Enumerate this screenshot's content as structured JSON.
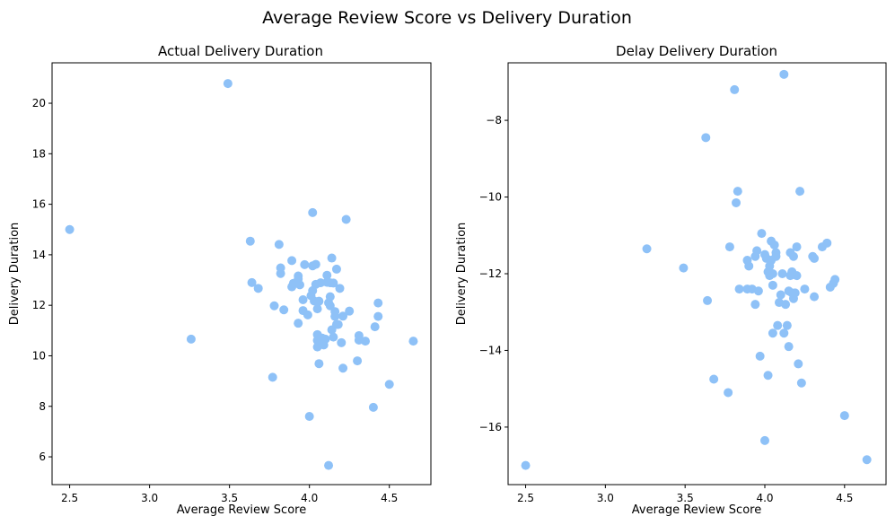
{
  "figure_title": "Average Review Score vs Delivery Duration",
  "colors": {
    "points": "#8ec1f7",
    "axes": "#000000",
    "background": "#ffffff"
  },
  "chart_data": [
    {
      "type": "scatter",
      "title": "Actual Delivery Duration",
      "xlabel": "Average Review Score",
      "ylabel": "Delivery Duration",
      "xlim": [
        2.39,
        4.76
      ],
      "ylim": [
        4.9,
        21.6
      ],
      "xticks": [
        2.5,
        3.0,
        3.5,
        4.0,
        4.5
      ],
      "xtick_labels": [
        "2.5",
        "3.0",
        "3.5",
        "4.0",
        "4.5"
      ],
      "yticks": [
        6,
        8,
        10,
        12,
        14,
        16,
        18,
        20
      ],
      "ytick_labels": [
        "6",
        "8",
        "10",
        "12",
        "14",
        "16",
        "18",
        "20"
      ],
      "grid": false,
      "points": [
        [
          2.5,
          15.0
        ],
        [
          3.26,
          10.66
        ],
        [
          3.49,
          20.78
        ],
        [
          3.63,
          14.54
        ],
        [
          3.64,
          12.9
        ],
        [
          3.68,
          12.67
        ],
        [
          3.77,
          9.15
        ],
        [
          3.78,
          11.98
        ],
        [
          3.81,
          14.41
        ],
        [
          3.82,
          13.48
        ],
        [
          3.82,
          13.26
        ],
        [
          3.84,
          11.82
        ],
        [
          3.89,
          12.73
        ],
        [
          3.89,
          13.77
        ],
        [
          3.9,
          12.87
        ],
        [
          3.93,
          13.16
        ],
        [
          3.93,
          13.04
        ],
        [
          3.94,
          12.81
        ],
        [
          3.93,
          11.29
        ],
        [
          3.96,
          11.79
        ],
        [
          3.96,
          12.22
        ],
        [
          3.97,
          13.61
        ],
        [
          3.99,
          11.62
        ],
        [
          4.0,
          7.6
        ],
        [
          4.01,
          12.38
        ],
        [
          4.02,
          12.58
        ],
        [
          4.02,
          13.56
        ],
        [
          4.02,
          15.67
        ],
        [
          4.03,
          12.17
        ],
        [
          4.04,
          13.62
        ],
        [
          4.04,
          12.83
        ],
        [
          4.05,
          11.86
        ],
        [
          4.05,
          10.84
        ],
        [
          4.05,
          10.61
        ],
        [
          4.05,
          10.35
        ],
        [
          4.06,
          12.16
        ],
        [
          4.06,
          9.69
        ],
        [
          4.07,
          12.89
        ],
        [
          4.08,
          10.7
        ],
        [
          4.09,
          10.43
        ],
        [
          4.1,
          10.66
        ],
        [
          4.11,
          12.91
        ],
        [
          4.11,
          13.19
        ],
        [
          4.12,
          5.66
        ],
        [
          4.12,
          12.1
        ],
        [
          4.13,
          12.89
        ],
        [
          4.13,
          11.98
        ],
        [
          4.13,
          12.34
        ],
        [
          4.14,
          13.87
        ],
        [
          4.14,
          11.03
        ],
        [
          4.15,
          12.88
        ],
        [
          4.15,
          10.74
        ],
        [
          4.16,
          11.75
        ],
        [
          4.16,
          11.56
        ],
        [
          4.17,
          13.43
        ],
        [
          4.17,
          11.24
        ],
        [
          4.18,
          11.24
        ],
        [
          4.19,
          12.67
        ],
        [
          4.2,
          10.52
        ],
        [
          4.21,
          9.51
        ],
        [
          4.21,
          11.57
        ],
        [
          4.23,
          15.4
        ],
        [
          4.25,
          11.77
        ],
        [
          4.3,
          9.8
        ],
        [
          4.31,
          10.8
        ],
        [
          4.31,
          10.62
        ],
        [
          4.35,
          10.58
        ],
        [
          4.4,
          7.96
        ],
        [
          4.41,
          11.15
        ],
        [
          4.43,
          12.09
        ],
        [
          4.43,
          11.56
        ],
        [
          4.5,
          8.87
        ],
        [
          4.65,
          10.58
        ]
      ]
    },
    {
      "type": "scatter",
      "title": "Delay Delivery Duration",
      "xlabel": "Average Review Score",
      "ylabel": "Delivery Duration",
      "xlim": [
        2.39,
        4.76
      ],
      "ylim": [
        -17.5,
        -6.5
      ],
      "xticks": [
        2.5,
        3.0,
        3.5,
        4.0,
        4.5
      ],
      "xtick_labels": [
        "2.5",
        "3.0",
        "3.5",
        "4.0",
        "4.5"
      ],
      "yticks": [
        -16,
        -14,
        -12,
        -10,
        -8
      ],
      "ytick_labels": [
        "−16",
        "−14",
        "−12",
        "−10",
        "−8"
      ],
      "grid": false,
      "points": [
        [
          2.5,
          -17.0
        ],
        [
          3.26,
          -11.35
        ],
        [
          3.49,
          -11.85
        ],
        [
          3.63,
          -8.45
        ],
        [
          3.64,
          -12.7
        ],
        [
          3.68,
          -14.75
        ],
        [
          3.77,
          -15.1
        ],
        [
          3.78,
          -11.3
        ],
        [
          3.81,
          -7.2
        ],
        [
          3.83,
          -9.85
        ],
        [
          3.82,
          -10.15
        ],
        [
          3.84,
          -12.4
        ],
        [
          3.89,
          -12.4
        ],
        [
          3.89,
          -11.65
        ],
        [
          3.9,
          -11.8
        ],
        [
          3.92,
          -12.4
        ],
        [
          3.94,
          -12.8
        ],
        [
          3.94,
          -11.55
        ],
        [
          3.95,
          -11.4
        ],
        [
          3.96,
          -12.45
        ],
        [
          3.97,
          -14.15
        ],
        [
          3.98,
          -10.95
        ],
        [
          4.0,
          -16.35
        ],
        [
          4.0,
          -11.5
        ],
        [
          4.01,
          -11.6
        ],
        [
          4.02,
          -14.65
        ],
        [
          4.03,
          -11.8
        ],
        [
          4.02,
          -11.95
        ],
        [
          4.03,
          -12.05
        ],
        [
          4.04,
          -11.15
        ],
        [
          4.04,
          -11.65
        ],
        [
          4.05,
          -12.0
        ],
        [
          4.05,
          -13.55
        ],
        [
          4.05,
          -12.3
        ],
        [
          4.06,
          -11.25
        ],
        [
          4.07,
          -11.45
        ],
        [
          4.07,
          -11.55
        ],
        [
          4.08,
          -13.35
        ],
        [
          4.09,
          -12.75
        ],
        [
          4.1,
          -12.55
        ],
        [
          4.11,
          -12.0
        ],
        [
          4.12,
          -13.55
        ],
        [
          4.12,
          -6.8
        ],
        [
          4.13,
          -12.8
        ],
        [
          4.14,
          -13.35
        ],
        [
          4.15,
          -12.45
        ],
        [
          4.15,
          -13.9
        ],
        [
          4.16,
          -11.45
        ],
        [
          4.16,
          -12.05
        ],
        [
          4.17,
          -12.5
        ],
        [
          4.17,
          -11.95
        ],
        [
          4.18,
          -11.55
        ],
        [
          4.18,
          -12.65
        ],
        [
          4.19,
          -12.5
        ],
        [
          4.2,
          -11.3
        ],
        [
          4.2,
          -12.05
        ],
        [
          4.21,
          -14.35
        ],
        [
          4.22,
          -9.85
        ],
        [
          4.23,
          -14.85
        ],
        [
          4.25,
          -12.4
        ],
        [
          4.3,
          -11.55
        ],
        [
          4.31,
          -12.6
        ],
        [
          4.31,
          -11.6
        ],
        [
          4.36,
          -11.3
        ],
        [
          4.39,
          -11.2
        ],
        [
          4.41,
          -12.35
        ],
        [
          4.43,
          -12.25
        ],
        [
          4.44,
          -12.15
        ],
        [
          4.5,
          -15.7
        ],
        [
          4.64,
          -16.85
        ]
      ]
    }
  ]
}
